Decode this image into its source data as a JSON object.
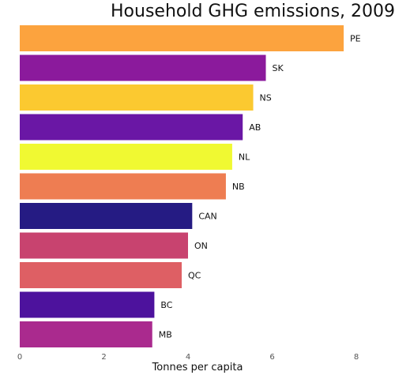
{
  "chart_data": {
    "type": "bar",
    "orientation": "horizontal",
    "title": "Household GHG emissions, 2009",
    "xlabel": "Tonnes per capita",
    "ylabel": "",
    "xlim": [
      0,
      8
    ],
    "xticks": [
      0,
      2,
      4,
      6,
      8
    ],
    "grid": false,
    "categories": [
      "PE",
      "SK",
      "NS",
      "AB",
      "NL",
      "NB",
      "CAN",
      "ON",
      "QC",
      "BC",
      "MB"
    ],
    "values": [
      7.7,
      5.85,
      5.55,
      5.3,
      5.05,
      4.9,
      4.1,
      4.0,
      3.85,
      3.2,
      3.15
    ],
    "colors": [
      "#fca33e",
      "#8b1a9c",
      "#fbc930",
      "#6a17a5",
      "#f0f932",
      "#ee7d52",
      "#251b83",
      "#c8436f",
      "#de5f64",
      "#4d129d",
      "#aa2a8e"
    ]
  }
}
